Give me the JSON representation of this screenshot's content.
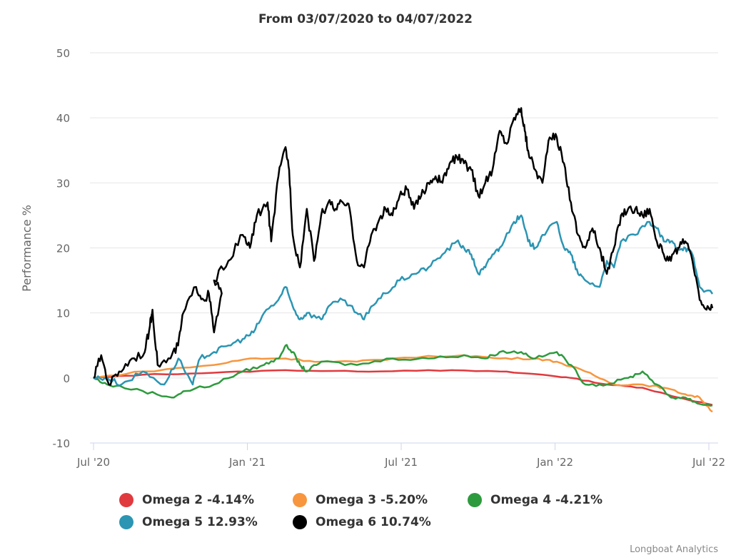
{
  "chart_data": {
    "type": "line",
    "title": "From 03/07/2020 to 04/07/2022",
    "xlabel": "",
    "ylabel": "Performance %",
    "ylim": [
      -10,
      50
    ],
    "yticks": [
      -10,
      0,
      10,
      20,
      30,
      40,
      50
    ],
    "xlim_months_since_jul_2020": [
      0,
      24.14
    ],
    "xticks": [
      {
        "month": 0,
        "label": "Jul '20"
      },
      {
        "month": 6,
        "label": "Jan '21"
      },
      {
        "month": 12,
        "label": "Jul '21"
      },
      {
        "month": 18,
        "label": "Jan '22"
      },
      {
        "month": 24,
        "label": "Jul '22"
      }
    ],
    "grid": true,
    "legend_placement": "bottom",
    "series": [
      {
        "name": "Omega 2",
        "legend": "Omega 2 -4.14%",
        "color": "#e03a3e",
        "points": [
          [
            0,
            0
          ],
          [
            1.92,
            0.5
          ],
          [
            4.7,
            0.8
          ],
          [
            7.49,
            1.2
          ],
          [
            10.27,
            1.0
          ],
          [
            13.06,
            1.2
          ],
          [
            15.84,
            1.0
          ],
          [
            17.51,
            0.5
          ],
          [
            18.62,
            0
          ],
          [
            20.02,
            -1
          ],
          [
            21.41,
            -1.5
          ],
          [
            22.8,
            -3
          ],
          [
            24.14,
            -4.14
          ]
        ]
      },
      {
        "name": "Omega 3",
        "legend": "Omega 3 -5.20%",
        "color": "#f7963e",
        "points": [
          [
            0,
            0
          ],
          [
            1.92,
            1
          ],
          [
            4.7,
            2
          ],
          [
            6.1,
            3
          ],
          [
            7.49,
            3
          ],
          [
            8.88,
            2.5
          ],
          [
            10.27,
            2.5
          ],
          [
            11.66,
            3
          ],
          [
            14.45,
            3.5
          ],
          [
            15.84,
            3
          ],
          [
            17.23,
            3
          ],
          [
            18.07,
            2.5
          ],
          [
            19.18,
            1
          ],
          [
            20.3,
            -1
          ],
          [
            21.41,
            -1
          ],
          [
            22.24,
            -1.5
          ],
          [
            23.08,
            -2.5
          ],
          [
            23.64,
            -3
          ],
          [
            24.14,
            -5.2
          ]
        ]
      },
      {
        "name": "Omega 4",
        "legend": "Omega 4 -4.21%",
        "color": "#2e9a3e",
        "points": [
          [
            0,
            0
          ],
          [
            0.53,
            -1
          ],
          [
            1.92,
            -2
          ],
          [
            3.04,
            -3
          ],
          [
            3.59,
            -2
          ],
          [
            4.7,
            -1
          ],
          [
            5.82,
            1
          ],
          [
            6.65,
            2
          ],
          [
            7.21,
            3
          ],
          [
            7.49,
            5
          ],
          [
            7.77,
            4
          ],
          [
            8.05,
            2
          ],
          [
            8.32,
            1
          ],
          [
            8.88,
            2.5
          ],
          [
            10.27,
            2
          ],
          [
            11.66,
            3
          ],
          [
            13.06,
            3
          ],
          [
            14.45,
            3.5
          ],
          [
            15.28,
            3
          ],
          [
            15.84,
            4
          ],
          [
            16.68,
            4
          ],
          [
            17.23,
            3
          ],
          [
            18.07,
            4
          ],
          [
            18.62,
            2
          ],
          [
            19.18,
            -1
          ],
          [
            20.02,
            -1
          ],
          [
            20.85,
            0
          ],
          [
            21.41,
            1
          ],
          [
            21.97,
            -1
          ],
          [
            22.52,
            -3
          ],
          [
            23.08,
            -3
          ],
          [
            23.64,
            -4
          ],
          [
            24.14,
            -4.21
          ]
        ]
      },
      {
        "name": "Omega 5",
        "legend": "Omega 5 12.93%",
        "color": "#2b95b3",
        "points": [
          [
            0,
            0
          ],
          [
            0.53,
            0
          ],
          [
            1.09,
            -1
          ],
          [
            1.92,
            1
          ],
          [
            2.76,
            -1
          ],
          [
            3.31,
            3
          ],
          [
            3.87,
            -1
          ],
          [
            4.15,
            3
          ],
          [
            4.7,
            4
          ],
          [
            5.26,
            5
          ],
          [
            5.82,
            6
          ],
          [
            6.24,
            7
          ],
          [
            6.65,
            10
          ],
          [
            7.21,
            12
          ],
          [
            7.49,
            14
          ],
          [
            7.77,
            11
          ],
          [
            8.05,
            9
          ],
          [
            8.32,
            10
          ],
          [
            8.88,
            9
          ],
          [
            9.16,
            11
          ],
          [
            9.72,
            12
          ],
          [
            10.27,
            10
          ],
          [
            10.55,
            9
          ],
          [
            10.83,
            11
          ],
          [
            11.39,
            13
          ],
          [
            11.94,
            15
          ],
          [
            12.5,
            16
          ],
          [
            13.06,
            17
          ],
          [
            13.61,
            19
          ],
          [
            14.17,
            21
          ],
          [
            14.45,
            20
          ],
          [
            14.73,
            19
          ],
          [
            15.01,
            16
          ],
          [
            15.28,
            17
          ],
          [
            15.56,
            19
          ],
          [
            15.84,
            20
          ],
          [
            16.4,
            24
          ],
          [
            16.68,
            25
          ],
          [
            16.95,
            21
          ],
          [
            17.23,
            20
          ],
          [
            17.51,
            22
          ],
          [
            18.07,
            24
          ],
          [
            18.35,
            20
          ],
          [
            18.62,
            19
          ],
          [
            18.9,
            16
          ],
          [
            19.18,
            15
          ],
          [
            19.74,
            14
          ],
          [
            20.02,
            18
          ],
          [
            20.3,
            17
          ],
          [
            20.57,
            21
          ],
          [
            21.13,
            22
          ],
          [
            21.69,
            24
          ],
          [
            21.97,
            23
          ],
          [
            22.24,
            21
          ],
          [
            22.52,
            21
          ],
          [
            22.8,
            20
          ],
          [
            23.08,
            20
          ],
          [
            23.36,
            19
          ],
          [
            23.64,
            14
          ],
          [
            24.14,
            12.93
          ]
        ]
      },
      {
        "name": "Omega 6",
        "legend": "Omega 6 10.74%",
        "color": "#000000",
        "points": [
          [
            0,
            0
          ],
          [
            0.3,
            3.5
          ],
          [
            0.6,
            -1
          ],
          [
            1,
            1
          ],
          [
            1.5,
            3
          ],
          [
            2,
            4
          ],
          [
            2.2,
            8
          ],
          [
            2.3,
            10.5
          ],
          [
            2.5,
            2
          ],
          [
            3,
            3
          ],
          [
            3.3,
            5
          ],
          [
            3.5,
            10
          ],
          [
            4,
            14
          ],
          [
            4.3,
            12
          ],
          [
            4.5,
            13
          ],
          [
            4.7,
            7
          ],
          [
            5,
            13
          ],
          [
            4.7,
            15
          ],
          [
            5.26,
            18
          ],
          [
            5.82,
            22
          ],
          [
            6.1,
            20
          ],
          [
            6.37,
            25
          ],
          [
            6.79,
            27
          ],
          [
            6.93,
            21
          ],
          [
            7.21,
            31
          ],
          [
            7.49,
            35.5
          ],
          [
            7.63,
            32
          ],
          [
            7.77,
            22
          ],
          [
            8.05,
            17
          ],
          [
            8.32,
            26
          ],
          [
            8.6,
            18
          ],
          [
            8.88,
            25
          ],
          [
            9.16,
            27
          ],
          [
            9.44,
            26
          ],
          [
            9.72,
            27
          ],
          [
            9.99,
            26
          ],
          [
            10.27,
            18
          ],
          [
            10.55,
            17
          ],
          [
            10.83,
            22
          ],
          [
            11.11,
            24
          ],
          [
            11.39,
            26
          ],
          [
            11.66,
            25
          ],
          [
            11.94,
            28
          ],
          [
            12.22,
            29
          ],
          [
            12.5,
            26
          ],
          [
            12.78,
            28
          ],
          [
            13.06,
            30
          ],
          [
            13.34,
            31
          ],
          [
            13.61,
            30
          ],
          [
            13.89,
            33
          ],
          [
            14.17,
            34
          ],
          [
            14.45,
            33
          ],
          [
            14.73,
            32
          ],
          [
            15.01,
            28
          ],
          [
            15.28,
            30
          ],
          [
            15.56,
            32
          ],
          [
            15.84,
            38
          ],
          [
            16.12,
            36
          ],
          [
            16.4,
            40
          ],
          [
            16.68,
            41.5
          ],
          [
            16.82,
            38
          ],
          [
            16.95,
            35
          ],
          [
            17.23,
            32
          ],
          [
            17.51,
            30
          ],
          [
            17.79,
            37
          ],
          [
            18.07,
            37
          ],
          [
            18.35,
            33
          ],
          [
            18.62,
            27
          ],
          [
            18.9,
            22
          ],
          [
            19.18,
            20
          ],
          [
            19.46,
            23
          ],
          [
            19.74,
            20
          ],
          [
            20.02,
            16
          ],
          [
            20.3,
            20
          ],
          [
            20.57,
            25
          ],
          [
            20.85,
            26
          ],
          [
            21.13,
            26
          ],
          [
            21.41,
            25
          ],
          [
            21.69,
            26
          ],
          [
            21.97,
            21
          ],
          [
            22.24,
            19
          ],
          [
            22.52,
            18
          ],
          [
            22.8,
            20
          ],
          [
            23.08,
            21
          ],
          [
            23.36,
            18
          ],
          [
            23.64,
            12
          ],
          [
            23.91,
            10.5
          ],
          [
            24.14,
            10.74
          ]
        ]
      }
    ],
    "credit": "Longboat Analytics"
  }
}
